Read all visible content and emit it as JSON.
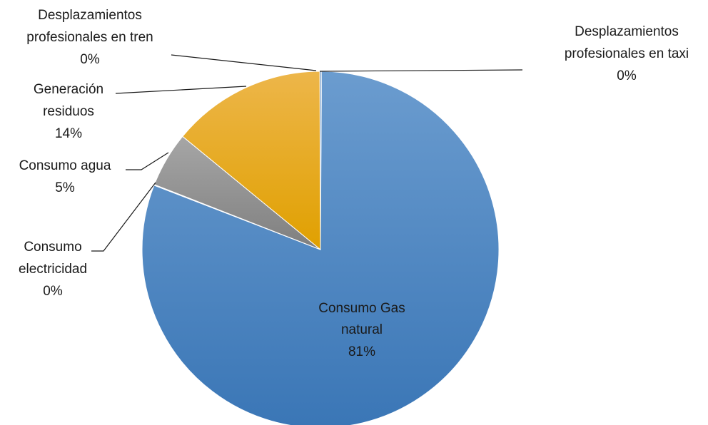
{
  "chart_data": {
    "type": "pie",
    "slices": [
      {
        "label": "Consumo Gas natural",
        "value": 81,
        "display": "81%",
        "color": "#4a86c5"
      },
      {
        "label": "Consumo electricidad",
        "value": 0,
        "display": "0%",
        "color": "#f0f0f0"
      },
      {
        "label": "Consumo agua",
        "value": 5,
        "display": "5%",
        "color": "#8c8c8c"
      },
      {
        "label": "Generación residuos",
        "value": 14,
        "display": "14%",
        "color": "#e8ac12"
      },
      {
        "label": "Desplazamientos profesionales en tren",
        "value": 0,
        "display": "0%",
        "color": "#2e4f86"
      },
      {
        "label": "Desplazamientos profesionales en taxi",
        "value": 0,
        "display": "0%",
        "color": "#5b8fc6"
      }
    ]
  },
  "labels": {
    "gas": {
      "line1": "Consumo Gas",
      "line2": "natural",
      "pct": "81%"
    },
    "electricidad": {
      "line1": "Consumo",
      "line2": "electricidad",
      "pct": "0%"
    },
    "agua": {
      "line1": "Consumo agua",
      "pct": "5%"
    },
    "residuos": {
      "line1": "Generación",
      "line2": "residuos",
      "pct": "14%"
    },
    "tren": {
      "line1": "Desplazamientos",
      "line2": "profesionales en tren",
      "pct": "0%"
    },
    "taxi": {
      "line1": "Desplazamientos",
      "line2": "profesionales en taxi",
      "pct": "0%"
    }
  }
}
